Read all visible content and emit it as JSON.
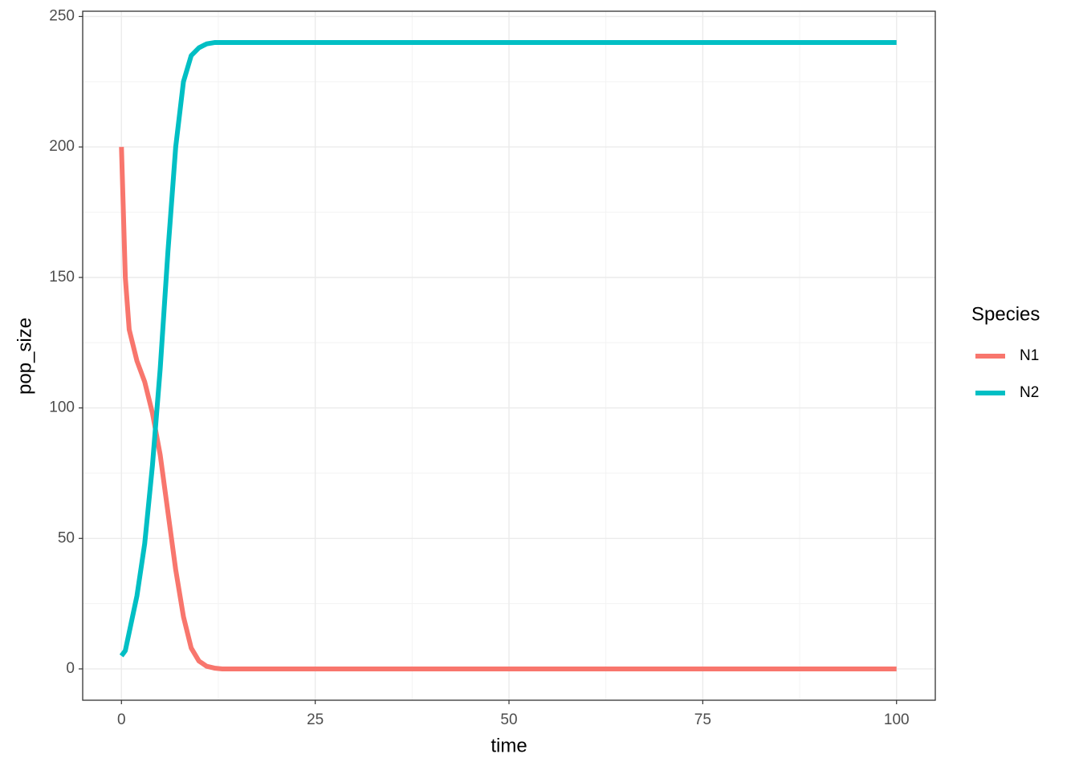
{
  "chart_data": {
    "type": "line",
    "x_label": "time",
    "y_label": "pop_size",
    "legend_title": "Species",
    "legend": "right",
    "x": [
      0,
      0.5,
      1,
      2,
      3,
      4,
      5,
      6,
      7,
      8,
      9,
      10,
      11,
      12,
      13,
      15,
      20,
      100
    ],
    "series": [
      {
        "name": "N1",
        "color": "#F8766D",
        "values": [
          200,
          150,
          130,
          118,
          110,
          98,
          82,
          60,
          38,
          20,
          8,
          3,
          1,
          0.3,
          0,
          0,
          0,
          0
        ]
      },
      {
        "name": "N2",
        "color": "#00BFC4",
        "values": [
          5,
          7,
          14,
          28,
          48,
          78,
          115,
          160,
          200,
          225,
          235,
          238,
          239.5,
          240,
          240,
          240,
          240,
          240
        ]
      }
    ],
    "xlim": [
      -5,
      105
    ],
    "ylim": [
      -12,
      252
    ],
    "xticks": [
      0,
      25,
      50,
      75,
      100
    ],
    "yticks": [
      0,
      50,
      100,
      150,
      200,
      250
    ],
    "grid": true,
    "minor_grid": true
  }
}
